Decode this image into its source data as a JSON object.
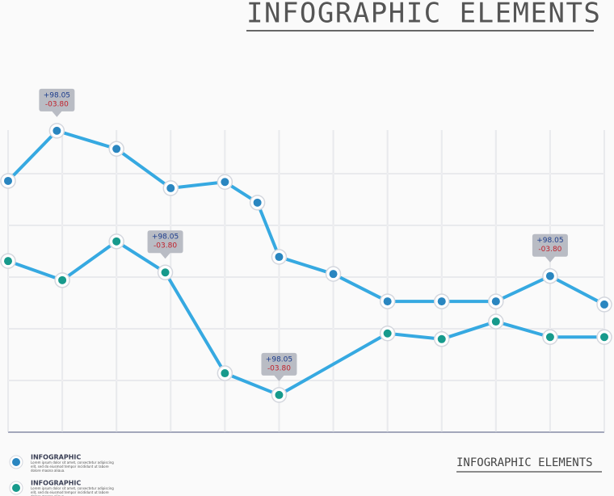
{
  "chart_data": {
    "type": "line",
    "title": "INFOGRAPHIC ELEMENTS",
    "footer": "INFOGRAPHIC ELEMENTS",
    "xlim": [
      0,
      11
    ],
    "xticks": [
      0,
      1,
      2,
      3,
      4,
      5,
      6,
      7,
      8,
      9,
      10,
      11
    ],
    "ylim": [
      0,
      6
    ],
    "yticks": [
      0,
      1,
      2,
      3,
      4,
      5,
      6
    ],
    "grid": true,
    "series": [
      {
        "name": "INFOGRAPHIC",
        "description": "Lorem ipsum dolor sit amet, consectetur adipiscing elit, sed do eiusmod tempor incididunt ut labore dolore magna aliqua.",
        "color": "#36a9e1",
        "marker_color": "#2a86c0",
        "fill": true,
        "x": [
          0,
          0.9,
          2,
          3,
          4,
          4.6,
          5,
          6,
          7,
          8,
          9,
          10,
          11
        ],
        "values": [
          4.86,
          5.83,
          5.48,
          4.72,
          4.84,
          4.44,
          3.39,
          3.06,
          2.53,
          2.53,
          2.53,
          3.02,
          2.47
        ]
      },
      {
        "name": "INFOGRAPHIC",
        "description": "Lorem ipsum dolor sit amet, consectetur adipiscing elit, sed do eiusmod tempor incididunt ut labore dolore magna aliqua.",
        "color": "#36a9e1",
        "marker_color": "#179a8c",
        "fill": false,
        "x": [
          0,
          1,
          2,
          2.9,
          4,
          5,
          7,
          8,
          9,
          10,
          11
        ],
        "values": [
          3.31,
          2.94,
          3.69,
          3.09,
          1.14,
          0.72,
          1.91,
          1.8,
          2.14,
          1.84,
          1.84
        ]
      }
    ],
    "annotations": [
      {
        "lines": [
          "+98.05",
          "-03.80"
        ]
      },
      {
        "lines": [
          "+98.05",
          "-03.80"
        ]
      },
      {
        "lines": [
          "+98.05",
          "-03.80"
        ]
      },
      {
        "lines": [
          "+98.05",
          "-03.80"
        ]
      }
    ]
  }
}
